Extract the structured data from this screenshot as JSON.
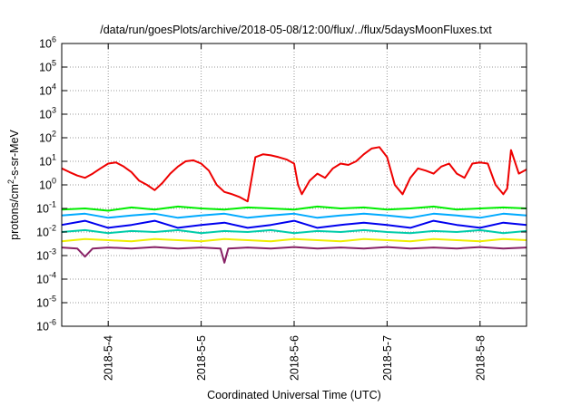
{
  "chart_data": {
    "type": "line",
    "title": "/data/run/goesPlots/archive/2018-05-08/12:00/flux/../flux/5daysMoonFluxes.txt",
    "xlabel": "Coordinated Universal Time (UTC)",
    "ylabel": {
      "pre": "protons/cm",
      "sup": "2",
      "post": "-s-sr-MeV"
    },
    "y_scale": "log",
    "ylim": [
      1e-06,
      1000000.0
    ],
    "y_ticks": [
      {
        "value": 1e-06,
        "base": "10",
        "exp": "-6"
      },
      {
        "value": 1e-05,
        "base": "10",
        "exp": "-5"
      },
      {
        "value": 0.0001,
        "base": "10",
        "exp": "-4"
      },
      {
        "value": 0.001,
        "base": "10",
        "exp": "-3"
      },
      {
        "value": 0.01,
        "base": "10",
        "exp": "-2"
      },
      {
        "value": 0.1,
        "base": "10",
        "exp": "-1"
      },
      {
        "value": 1,
        "base": "10",
        "exp": "0"
      },
      {
        "value": 10,
        "base": "10",
        "exp": "1"
      },
      {
        "value": 100,
        "base": "10",
        "exp": "2"
      },
      {
        "value": 1000,
        "base": "10",
        "exp": "3"
      },
      {
        "value": 10000,
        "base": "10",
        "exp": "4"
      },
      {
        "value": 100000,
        "base": "10",
        "exp": "5"
      },
      {
        "value": 1000000,
        "base": "10",
        "exp": "6"
      }
    ],
    "xlim": [
      "2018-05-03T12:00",
      "2018-05-08T12:00"
    ],
    "x_ticks": [
      {
        "value": "2018-05-04T00:00",
        "label": "2018-5-4"
      },
      {
        "value": "2018-05-05T00:00",
        "label": "2018-5-5"
      },
      {
        "value": "2018-05-06T00:00",
        "label": "2018-5-6"
      },
      {
        "value": "2018-05-07T00:00",
        "label": "2018-5-7"
      },
      {
        "value": "2018-05-08T00:00",
        "label": "2018-5-8"
      }
    ],
    "grid": true,
    "series": [
      {
        "color": "#ee0000",
        "x": [
          "2018-05-03T12:00",
          "2018-05-03T14:00",
          "2018-05-03T16:00",
          "2018-05-03T18:00",
          "2018-05-03T20:00",
          "2018-05-03T22:00",
          "2018-05-04T00:00",
          "2018-05-04T02:00",
          "2018-05-04T04:00",
          "2018-05-04T06:00",
          "2018-05-04T08:00",
          "2018-05-04T10:00",
          "2018-05-04T12:00",
          "2018-05-04T14:00",
          "2018-05-04T16:00",
          "2018-05-04T18:00",
          "2018-05-04T20:00",
          "2018-05-04T22:00",
          "2018-05-05T00:00",
          "2018-05-05T02:00",
          "2018-05-05T04:00",
          "2018-05-05T06:00",
          "2018-05-05T08:00",
          "2018-05-05T10:00",
          "2018-05-05T12:00",
          "2018-05-05T14:00",
          "2018-05-05T16:00",
          "2018-05-05T18:00",
          "2018-05-05T20:00",
          "2018-05-05T22:00",
          "2018-05-06T00:00",
          "2018-05-06T01:00",
          "2018-05-06T02:00",
          "2018-05-06T04:00",
          "2018-05-06T06:00",
          "2018-05-06T08:00",
          "2018-05-06T10:00",
          "2018-05-06T12:00",
          "2018-05-06T14:00",
          "2018-05-06T16:00",
          "2018-05-06T18:00",
          "2018-05-06T20:00",
          "2018-05-06T22:00",
          "2018-05-07T00:00",
          "2018-05-07T02:00",
          "2018-05-07T04:00",
          "2018-05-07T06:00",
          "2018-05-07T08:00",
          "2018-05-07T10:00",
          "2018-05-07T12:00",
          "2018-05-07T14:00",
          "2018-05-07T16:00",
          "2018-05-07T18:00",
          "2018-05-07T20:00",
          "2018-05-07T22:00",
          "2018-05-08T00:00",
          "2018-05-08T02:00",
          "2018-05-08T04:00",
          "2018-05-08T06:00",
          "2018-05-08T07:00",
          "2018-05-08T08:00",
          "2018-05-08T10:00",
          "2018-05-08T12:00"
        ],
        "values": [
          5,
          3.5,
          2.5,
          2,
          3,
          5,
          8,
          9,
          6,
          3.5,
          1.5,
          1,
          0.6,
          1.2,
          3,
          6,
          10,
          11,
          8,
          4,
          1,
          0.5,
          0.4,
          0.3,
          0.2,
          15,
          20,
          18,
          15,
          12,
          8,
          1,
          0.4,
          1.5,
          3,
          2,
          5,
          8,
          7,
          10,
          20,
          35,
          40,
          15,
          1,
          0.4,
          2,
          5,
          4,
          3,
          6,
          8,
          3,
          2,
          8,
          9,
          8,
          1,
          0.4,
          0.7,
          30,
          3,
          4.5
        ]
      },
      {
        "color": "#00ee00",
        "x": [
          "2018-05-03T12:00",
          "2018-05-03T18:00",
          "2018-05-04T00:00",
          "2018-05-04T06:00",
          "2018-05-04T12:00",
          "2018-05-04T18:00",
          "2018-05-05T00:00",
          "2018-05-05T06:00",
          "2018-05-05T12:00",
          "2018-05-05T18:00",
          "2018-05-06T00:00",
          "2018-05-06T06:00",
          "2018-05-06T12:00",
          "2018-05-06T18:00",
          "2018-05-07T00:00",
          "2018-05-07T06:00",
          "2018-05-07T12:00",
          "2018-05-07T18:00",
          "2018-05-08T00:00",
          "2018-05-08T06:00",
          "2018-05-08T12:00"
        ],
        "values": [
          0.09,
          0.1,
          0.08,
          0.11,
          0.09,
          0.12,
          0.1,
          0.09,
          0.11,
          0.1,
          0.09,
          0.12,
          0.1,
          0.11,
          0.09,
          0.1,
          0.12,
          0.09,
          0.1,
          0.11,
          0.1
        ]
      },
      {
        "color": "#00aaff",
        "x": [
          "2018-05-03T12:00",
          "2018-05-03T18:00",
          "2018-05-04T00:00",
          "2018-05-04T06:00",
          "2018-05-04T12:00",
          "2018-05-04T18:00",
          "2018-05-05T00:00",
          "2018-05-05T06:00",
          "2018-05-05T12:00",
          "2018-05-05T18:00",
          "2018-05-06T00:00",
          "2018-05-06T06:00",
          "2018-05-06T12:00",
          "2018-05-06T18:00",
          "2018-05-07T00:00",
          "2018-05-07T06:00",
          "2018-05-07T12:00",
          "2018-05-07T18:00",
          "2018-05-08T00:00",
          "2018-05-08T06:00",
          "2018-05-08T12:00"
        ],
        "values": [
          0.05,
          0.06,
          0.04,
          0.05,
          0.06,
          0.04,
          0.05,
          0.06,
          0.04,
          0.05,
          0.06,
          0.04,
          0.05,
          0.06,
          0.05,
          0.04,
          0.06,
          0.05,
          0.04,
          0.06,
          0.05
        ]
      },
      {
        "color": "#0000ee",
        "x": [
          "2018-05-03T12:00",
          "2018-05-03T18:00",
          "2018-05-04T00:00",
          "2018-05-04T06:00",
          "2018-05-04T12:00",
          "2018-05-04T18:00",
          "2018-05-05T00:00",
          "2018-05-05T06:00",
          "2018-05-05T12:00",
          "2018-05-05T18:00",
          "2018-05-06T00:00",
          "2018-05-06T06:00",
          "2018-05-06T12:00",
          "2018-05-06T18:00",
          "2018-05-07T00:00",
          "2018-05-07T06:00",
          "2018-05-07T12:00",
          "2018-05-07T18:00",
          "2018-05-08T00:00",
          "2018-05-08T06:00",
          "2018-05-08T12:00"
        ],
        "values": [
          0.02,
          0.03,
          0.015,
          0.02,
          0.03,
          0.015,
          0.02,
          0.025,
          0.015,
          0.02,
          0.03,
          0.015,
          0.02,
          0.025,
          0.02,
          0.015,
          0.03,
          0.02,
          0.015,
          0.025,
          0.02
        ]
      },
      {
        "color": "#00ccaa",
        "x": [
          "2018-05-03T12:00",
          "2018-05-03T18:00",
          "2018-05-04T00:00",
          "2018-05-04T06:00",
          "2018-05-04T12:00",
          "2018-05-04T18:00",
          "2018-05-05T00:00",
          "2018-05-05T06:00",
          "2018-05-05T12:00",
          "2018-05-05T18:00",
          "2018-05-06T00:00",
          "2018-05-06T06:00",
          "2018-05-06T12:00",
          "2018-05-06T18:00",
          "2018-05-07T00:00",
          "2018-05-07T06:00",
          "2018-05-07T12:00",
          "2018-05-07T18:00",
          "2018-05-08T00:00",
          "2018-05-08T06:00",
          "2018-05-08T12:00"
        ],
        "values": [
          0.01,
          0.012,
          0.009,
          0.011,
          0.01,
          0.012,
          0.009,
          0.011,
          0.01,
          0.012,
          0.009,
          0.011,
          0.01,
          0.012,
          0.01,
          0.009,
          0.011,
          0.01,
          0.012,
          0.009,
          0.011
        ]
      },
      {
        "color": "#eeee00",
        "x": [
          "2018-05-03T12:00",
          "2018-05-03T18:00",
          "2018-05-04T00:00",
          "2018-05-04T06:00",
          "2018-05-04T12:00",
          "2018-05-04T18:00",
          "2018-05-05T00:00",
          "2018-05-05T06:00",
          "2018-05-05T12:00",
          "2018-05-05T18:00",
          "2018-05-06T00:00",
          "2018-05-06T06:00",
          "2018-05-06T12:00",
          "2018-05-06T18:00",
          "2018-05-07T00:00",
          "2018-05-07T06:00",
          "2018-05-07T12:00",
          "2018-05-07T18:00",
          "2018-05-08T00:00",
          "2018-05-08T06:00",
          "2018-05-08T12:00"
        ],
        "values": [
          0.004,
          0.005,
          0.0045,
          0.004,
          0.005,
          0.0045,
          0.004,
          0.005,
          0.0045,
          0.004,
          0.005,
          0.0045,
          0.004,
          0.005,
          0.0045,
          0.004,
          0.005,
          0.0045,
          0.004,
          0.005,
          0.0045
        ]
      },
      {
        "color": "#882266",
        "x": [
          "2018-05-03T12:00",
          "2018-05-03T16:00",
          "2018-05-03T18:00",
          "2018-05-03T20:00",
          "2018-05-04T00:00",
          "2018-05-04T06:00",
          "2018-05-04T12:00",
          "2018-05-04T18:00",
          "2018-05-05T00:00",
          "2018-05-05T05:00",
          "2018-05-05T06:00",
          "2018-05-05T07:00",
          "2018-05-05T12:00",
          "2018-05-05T18:00",
          "2018-05-06T00:00",
          "2018-05-06T06:00",
          "2018-05-06T12:00",
          "2018-05-06T18:00",
          "2018-05-07T00:00",
          "2018-05-07T06:00",
          "2018-05-07T12:00",
          "2018-05-07T18:00",
          "2018-05-08T00:00",
          "2018-05-08T06:00",
          "2018-05-08T12:00"
        ],
        "values": [
          0.0022,
          0.002,
          0.0009,
          0.002,
          0.0022,
          0.002,
          0.0023,
          0.002,
          0.0022,
          0.002,
          0.0005,
          0.002,
          0.0022,
          0.002,
          0.0023,
          0.002,
          0.0022,
          0.002,
          0.0023,
          0.002,
          0.0022,
          0.002,
          0.0023,
          0.002,
          0.0022
        ]
      }
    ]
  }
}
